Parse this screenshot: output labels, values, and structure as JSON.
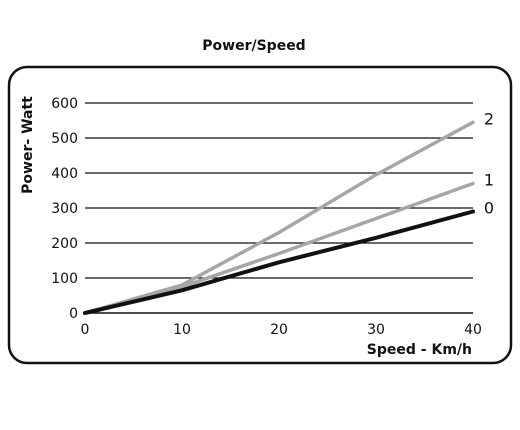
{
  "chart_data": {
    "type": "line",
    "title": "Power/Speed",
    "xlabel": "Speed - Km/h",
    "ylabel": "Power- Watt",
    "xlim": [
      0,
      40
    ],
    "ylim": [
      0,
      600
    ],
    "xticks": [
      0,
      10,
      20,
      30,
      40
    ],
    "yticks": [
      0,
      100,
      200,
      300,
      400,
      500,
      600
    ],
    "grid": "horizontal",
    "series": [
      {
        "name": "0",
        "color": "#111111",
        "x": [
          0,
          10,
          20,
          30,
          40
        ],
        "y": [
          0,
          65,
          145,
          215,
          290
        ]
      },
      {
        "name": "1",
        "color": "#a6a6a6",
        "x": [
          0,
          10,
          20,
          30,
          40
        ],
        "y": [
          0,
          75,
          170,
          270,
          370
        ]
      },
      {
        "name": "2",
        "color": "#a6a6a6",
        "x": [
          0,
          10,
          20,
          30,
          40
        ],
        "y": [
          0,
          80,
          230,
          395,
          545
        ]
      }
    ]
  }
}
